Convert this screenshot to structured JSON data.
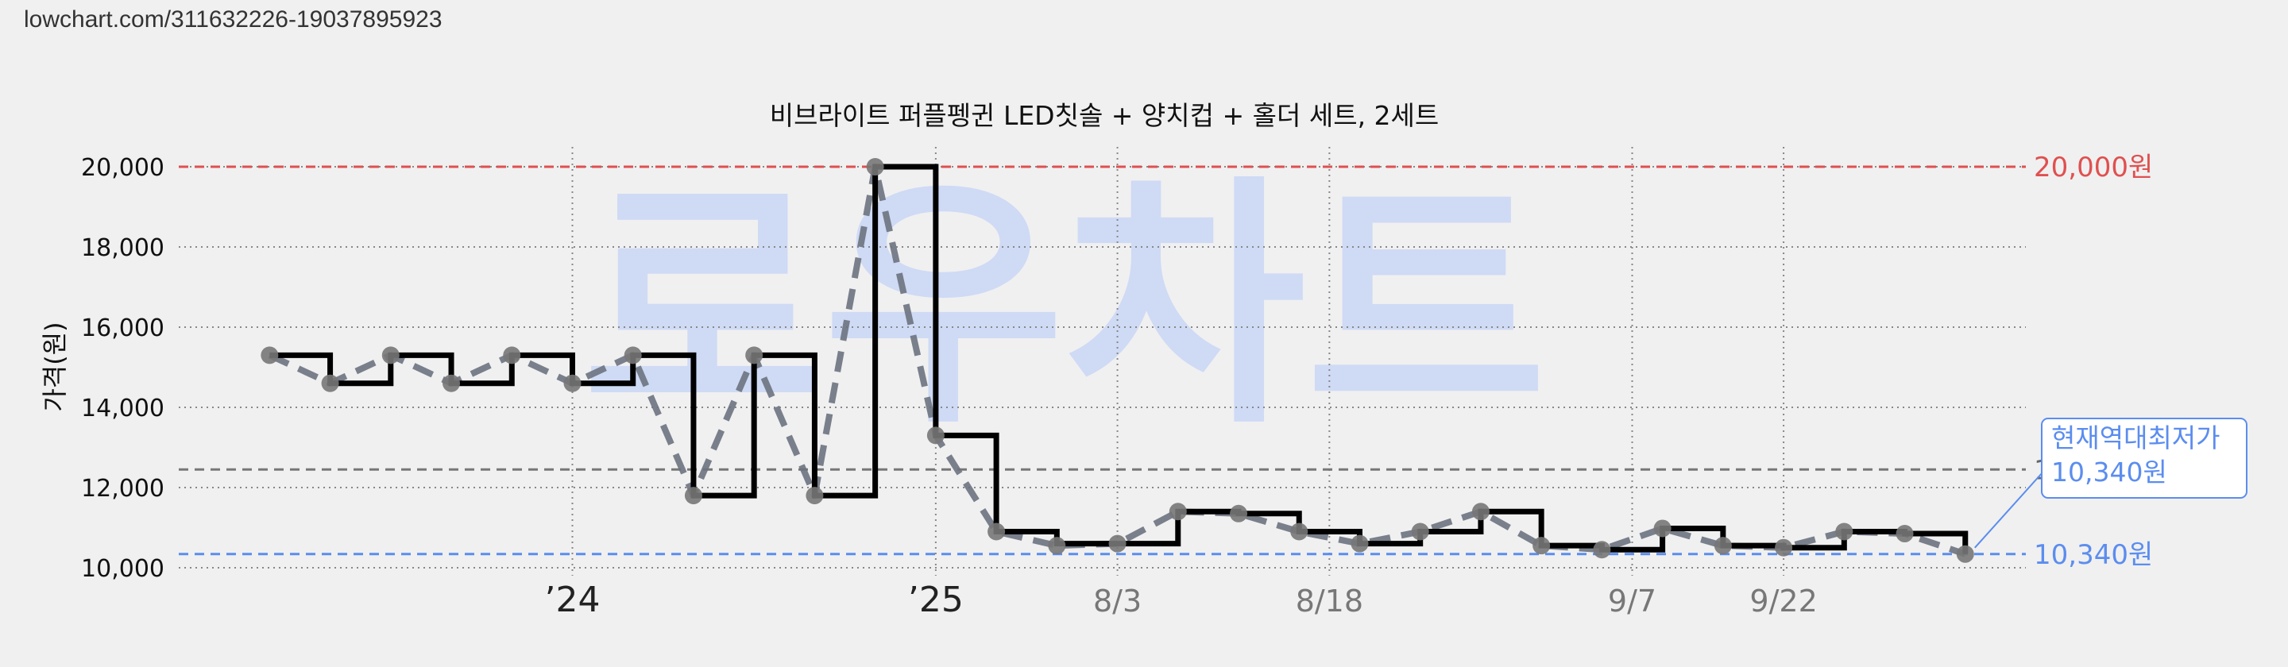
{
  "source_url": "lowchart.com/311632226-19037895923",
  "watermark": "로우차트",
  "colors": {
    "background": "#f0f0f0",
    "max_line": "#e05050",
    "min_line": "#5b8def",
    "avg_line": "#777777",
    "step_line": "#000000",
    "dashed_series": "#6b7280",
    "watermark": "#cfdaf5"
  },
  "chart_data": {
    "type": "line",
    "title": "비브라이트 퍼플펭귄 LED칫솔 + 양치컵 + 홀더 세트, 2세트",
    "ylabel": "가격(원)",
    "xlabel": "",
    "ylim": [
      9900,
      20100
    ],
    "y_ticks": [
      10000,
      12000,
      14000,
      16000,
      18000,
      20000
    ],
    "y_tick_labels": [
      "10,000",
      "12,000",
      "14,000",
      "16,000",
      "18,000",
      "20,000"
    ],
    "x_ticks": [
      {
        "label": "’24",
        "x": 5,
        "style": "year"
      },
      {
        "label": "’25",
        "x": 11,
        "style": "year"
      },
      {
        "label": "8/3",
        "x": 14,
        "style": "date"
      },
      {
        "label": "8/18",
        "x": 17.5,
        "style": "date"
      },
      {
        "label": "9/7",
        "x": 22.5,
        "style": "date"
      },
      {
        "label": "9/22",
        "x": 25,
        "style": "date"
      }
    ],
    "xlim": [
      -1.5,
      29
    ],
    "x": [
      0,
      1,
      2,
      3,
      4,
      5,
      6,
      7,
      8,
      9,
      10,
      11,
      12,
      13,
      14,
      15,
      16,
      17,
      18,
      19,
      20,
      21,
      22,
      23,
      24,
      25,
      26,
      27,
      28
    ],
    "series": [
      {
        "style": "step",
        "values": [
          15300,
          14600,
          15300,
          14600,
          15300,
          14600,
          15300,
          11800,
          15300,
          11800,
          20000,
          13300,
          10900,
          10600,
          10600,
          11400,
          11350,
          10900,
          10600,
          10900,
          11400,
          10550,
          10450,
          10980,
          10550,
          10500,
          10900,
          10850,
          10340
        ]
      },
      {
        "style": "dashed",
        "values": [
          15300,
          14600,
          15300,
          14600,
          15300,
          14600,
          15300,
          11800,
          15300,
          11800,
          20000,
          13300,
          10900,
          10550,
          10600,
          11400,
          11350,
          10900,
          10600,
          10900,
          11400,
          10550,
          10450,
          10980,
          10550,
          10500,
          10900,
          10850,
          10340
        ]
      }
    ],
    "max_line": {
      "value": 20000,
      "label": "20,000원"
    },
    "avg_line": {
      "value": 12450,
      "label": "1"
    },
    "min_line": {
      "value": 10340,
      "label": "10,340원"
    },
    "callout": {
      "line1": "현재역대최저가",
      "line2": "10,340원"
    },
    "grid": true
  }
}
